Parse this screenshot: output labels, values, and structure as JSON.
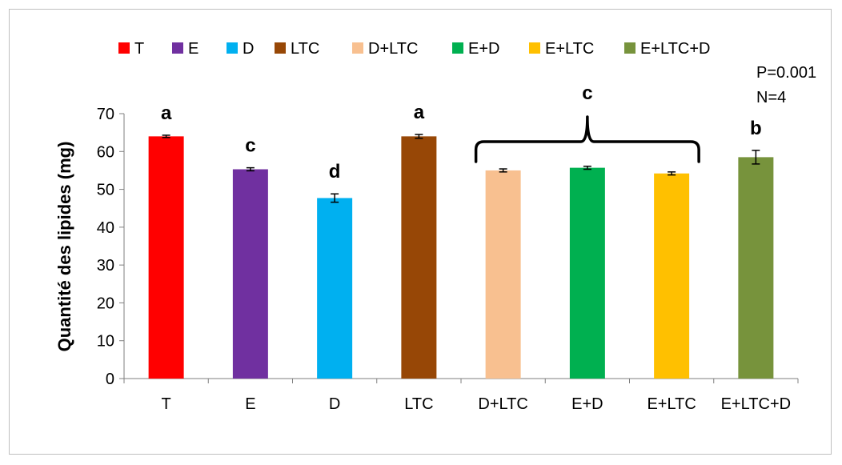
{
  "chart_data": {
    "type": "bar",
    "title": "",
    "xlabel": "",
    "ylabel": "Quantité des lipides (mg)",
    "ylim": [
      0,
      70
    ],
    "yticks": [
      0,
      10,
      20,
      30,
      40,
      50,
      60,
      70
    ],
    "grid": false,
    "legend_position": "top",
    "categories": [
      "T",
      "E",
      "D",
      "LTC",
      "D+LTC",
      "E+D",
      "E+LTC",
      "E+LTC+D"
    ],
    "values": [
      64.0,
      55.3,
      47.7,
      64.0,
      55.0,
      55.7,
      54.2,
      58.5
    ],
    "errors": [
      0.3,
      0.4,
      1.1,
      0.5,
      0.4,
      0.4,
      0.4,
      1.8
    ],
    "colors": [
      "#ff0000",
      "#7030a0",
      "#00b0f0",
      "#974706",
      "#f8c090",
      "#00b050",
      "#ffc000",
      "#77933c"
    ],
    "letters": [
      "a",
      "c",
      "d",
      "a",
      "",
      "",
      "",
      "b"
    ],
    "group_letter": "c",
    "group_categories": [
      "D+LTC",
      "E+D",
      "E+LTC"
    ],
    "annotations": [
      "P=0.001",
      "N=4"
    ]
  }
}
